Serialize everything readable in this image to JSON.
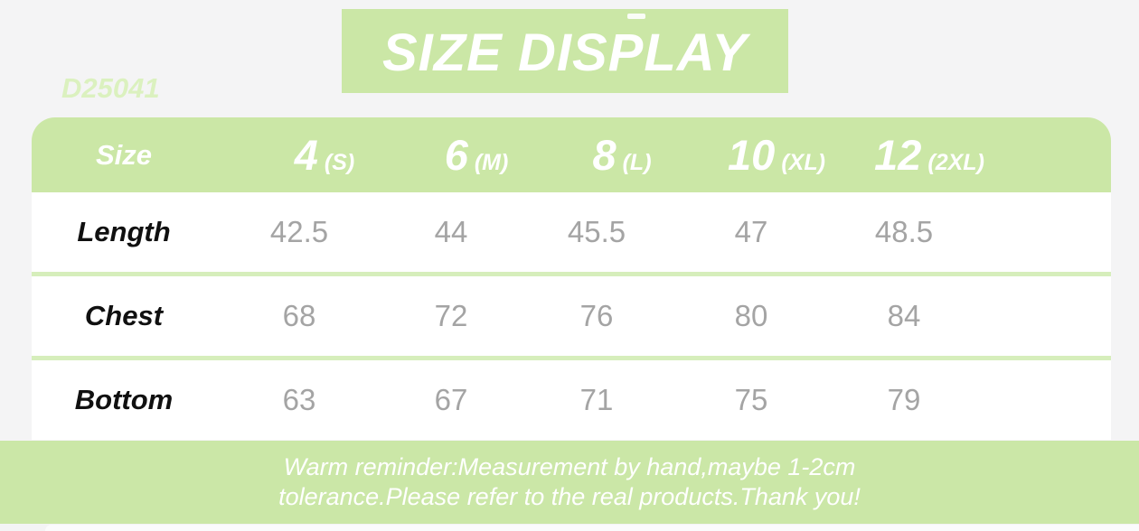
{
  "product_code": "D25041",
  "banner": {
    "title": "SIZE DISPLAY"
  },
  "table": {
    "header_label": "Size",
    "columns": [
      {
        "size": "4",
        "fit": "(S)"
      },
      {
        "size": "6",
        "fit": "(M)"
      },
      {
        "size": "8",
        "fit": "(L)"
      },
      {
        "size": "10",
        "fit": "(XL)"
      },
      {
        "size": "12",
        "fit": "(2XL)"
      }
    ],
    "rows": [
      {
        "label": "Length",
        "values": [
          "42.5",
          "44",
          "45.5",
          "47",
          "48.5"
        ]
      },
      {
        "label": "Chest",
        "values": [
          "68",
          "72",
          "76",
          "80",
          "84"
        ]
      },
      {
        "label": "Bottom",
        "values": [
          "63",
          "67",
          "71",
          "75",
          "79"
        ]
      }
    ]
  },
  "footer": {
    "line1": "Warm reminder:Measurement by hand,maybe 1-2cm",
    "line2": "tolerance.Please refer to the real products.Thank you!"
  },
  "colors": {
    "green": "#cbe7a6",
    "divider_green": "#d6eebb",
    "code_text": "#dbf1bf",
    "value_text": "#a4a4a4",
    "label_text": "#101010",
    "background": "#f4f4f5",
    "text_on_green": "#ffffff"
  },
  "chart_data": {
    "type": "table",
    "title": "SIZE DISPLAY",
    "columns": [
      "Size",
      "4 (S)",
      "6 (M)",
      "8 (L)",
      "10 (XL)",
      "12 (2XL)"
    ],
    "rows": [
      [
        "Length",
        42.5,
        44,
        45.5,
        47,
        48.5
      ],
      [
        "Chest",
        68,
        72,
        76,
        80,
        84
      ],
      [
        "Bottom",
        63,
        67,
        71,
        75,
        79
      ]
    ],
    "note": "Warm reminder:Measurement by hand,maybe 1-2cm tolerance.Please refer to the real products.Thank you!"
  }
}
